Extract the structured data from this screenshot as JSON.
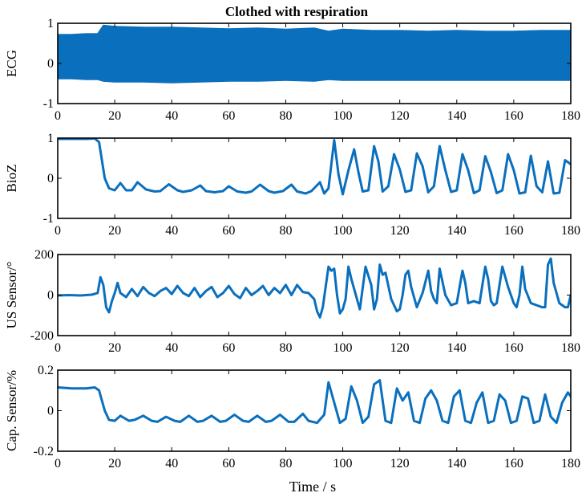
{
  "figure_title": "Clothed with respiration",
  "xlabel": "Time / s",
  "colors": {
    "series": "#0a6fbd",
    "axes": "#000000"
  },
  "chart_data": [
    {
      "type": "line",
      "ylabel": "ECG",
      "xlim": [
        0,
        180
      ],
      "ylim": [
        -1,
        1
      ],
      "xticks": [
        0,
        20,
        40,
        60,
        80,
        100,
        120,
        140,
        160,
        180
      ],
      "yticks": [
        -1,
        0,
        1
      ],
      "grid": false,
      "series": [
        {
          "note_kind": "dense oscillation envelope",
          "x": [
            0,
            5,
            10,
            14,
            16,
            20,
            30,
            40,
            50,
            60,
            70,
            80,
            90,
            95,
            100,
            110,
            120,
            130,
            140,
            150,
            160,
            170,
            180
          ],
          "upper": [
            0.72,
            0.72,
            0.74,
            0.74,
            0.95,
            0.92,
            0.9,
            0.9,
            0.88,
            0.86,
            0.88,
            0.85,
            0.88,
            0.8,
            0.85,
            0.82,
            0.82,
            0.8,
            0.82,
            0.8,
            0.8,
            0.82,
            0.82
          ],
          "lower": [
            -0.38,
            -0.38,
            -0.4,
            -0.4,
            -0.44,
            -0.46,
            -0.46,
            -0.48,
            -0.46,
            -0.44,
            -0.44,
            -0.42,
            -0.44,
            -0.4,
            -0.42,
            -0.42,
            -0.42,
            -0.42,
            -0.42,
            -0.42,
            -0.42,
            -0.42,
            -0.42
          ]
        }
      ]
    },
    {
      "type": "line",
      "ylabel": "BioZ",
      "xlim": [
        0,
        180
      ],
      "ylim": [
        -1,
        1
      ],
      "xticks": [
        0,
        20,
        40,
        60,
        80,
        100,
        120,
        140,
        160,
        180
      ],
      "yticks": [
        -1,
        0,
        1
      ],
      "grid": false,
      "series": [
        {
          "x": [
            0,
            5,
            10,
            13,
            14.5,
            16.5,
            18,
            20,
            22,
            24,
            26,
            28,
            31,
            34,
            36,
            39,
            42,
            44,
            47,
            50,
            52,
            55,
            58,
            60,
            63,
            66,
            68,
            71,
            74,
            76,
            79,
            82,
            84,
            87,
            89,
            92,
            93.5,
            95,
            97,
            98.5,
            100,
            102,
            104,
            105.5,
            107,
            109,
            111,
            112.5,
            114,
            116,
            118,
            120,
            122,
            124,
            126,
            128,
            130,
            132,
            134,
            136,
            138,
            140,
            142,
            144,
            146,
            148,
            150,
            152,
            154,
            156,
            158,
            160,
            162,
            164,
            166,
            168,
            170,
            172,
            174,
            176,
            178,
            180
          ],
          "y": [
            0.98,
            0.98,
            0.98,
            0.99,
            0.9,
            0.0,
            -0.25,
            -0.3,
            -0.12,
            -0.3,
            -0.3,
            -0.1,
            -0.28,
            -0.33,
            -0.32,
            -0.15,
            -0.3,
            -0.34,
            -0.3,
            -0.18,
            -0.32,
            -0.35,
            -0.32,
            -0.2,
            -0.33,
            -0.36,
            -0.33,
            -0.16,
            -0.32,
            -0.36,
            -0.32,
            -0.16,
            -0.33,
            -0.38,
            -0.32,
            -0.1,
            -0.38,
            -0.25,
            0.95,
            0.1,
            -0.4,
            0.2,
            0.72,
            0.15,
            -0.33,
            -0.3,
            0.8,
            0.42,
            -0.33,
            -0.2,
            0.6,
            0.22,
            -0.34,
            -0.3,
            0.62,
            0.3,
            -0.35,
            -0.2,
            0.8,
            0.2,
            -0.34,
            -0.3,
            0.6,
            0.2,
            -0.37,
            -0.3,
            0.55,
            0.15,
            -0.37,
            -0.3,
            0.6,
            0.2,
            -0.38,
            -0.35,
            0.56,
            -0.2,
            -0.35,
            0.42,
            -0.38,
            -0.36,
            0.45,
            0.35
          ]
        }
      ]
    },
    {
      "type": "line",
      "ylabel": "US Sensor/°",
      "xlim": [
        0,
        180
      ],
      "ylim": [
        -200,
        200
      ],
      "xticks": [
        0,
        20,
        40,
        60,
        80,
        100,
        120,
        140,
        160,
        180
      ],
      "yticks": [
        -200,
        0,
        200
      ],
      "grid": false,
      "series": [
        {
          "x": [
            0,
            4,
            8,
            12,
            14,
            15,
            16,
            17,
            18,
            19,
            20,
            21,
            22,
            24,
            26,
            28,
            30,
            32,
            34,
            36,
            38,
            40,
            42,
            44,
            46,
            48,
            50,
            52,
            54,
            56,
            58,
            60,
            62,
            64,
            66,
            68,
            70,
            72,
            74,
            76,
            78,
            80,
            82,
            84,
            86,
            88,
            90,
            91,
            92,
            93,
            94,
            95,
            96,
            97,
            98,
            99,
            100,
            101,
            102,
            103,
            104,
            106,
            108,
            110,
            111,
            112,
            113,
            114,
            115,
            117,
            119,
            120,
            121,
            122,
            123,
            124,
            126,
            128,
            130,
            131,
            132,
            133,
            134,
            136,
            138,
            140,
            141,
            142,
            143,
            144,
            146,
            148,
            150,
            151,
            152,
            153,
            154,
            156,
            158,
            160,
            161,
            162,
            163,
            164,
            166,
            168,
            170,
            171,
            172,
            173,
            174,
            176,
            178,
            179,
            180
          ],
          "y": [
            -2,
            0,
            -2,
            2,
            10,
            88,
            50,
            -60,
            -85,
            -30,
            10,
            60,
            10,
            -10,
            30,
            -5,
            40,
            10,
            -5,
            20,
            35,
            5,
            45,
            10,
            -5,
            35,
            -10,
            20,
            40,
            -10,
            10,
            45,
            5,
            -15,
            35,
            0,
            20,
            45,
            0,
            35,
            10,
            50,
            0,
            50,
            15,
            10,
            -20,
            -80,
            -110,
            -60,
            40,
            140,
            120,
            130,
            0,
            -90,
            -70,
            -20,
            140,
            80,
            30,
            -70,
            140,
            50,
            -70,
            -20,
            150,
            100,
            110,
            -20,
            -80,
            -70,
            0,
            100,
            120,
            40,
            -60,
            10,
            120,
            20,
            -20,
            -40,
            130,
            0,
            -50,
            -40,
            40,
            120,
            60,
            -40,
            -30,
            -40,
            140,
            80,
            -30,
            -50,
            -40,
            140,
            40,
            -40,
            -60,
            0,
            140,
            30,
            -40,
            -50,
            -60,
            -60,
            150,
            180,
            60,
            -40,
            -60,
            -60,
            0
          ]
        }
      ]
    },
    {
      "type": "line",
      "ylabel": "Cap. Sensor/%",
      "xlim": [
        0,
        180
      ],
      "ylim": [
        -0.2,
        0.2
      ],
      "xticks": [
        0,
        20,
        40,
        60,
        80,
        100,
        120,
        140,
        160,
        180
      ],
      "yticks": [
        -0.2,
        0,
        0.2
      ],
      "grid": false,
      "series": [
        {
          "x": [
            0,
            5,
            10,
            13,
            14.5,
            16.5,
            18,
            20,
            22,
            25,
            27,
            30,
            33,
            35,
            38,
            41,
            43,
            46,
            49,
            51,
            54,
            57,
            59,
            62,
            65,
            67,
            70,
            73,
            75,
            78,
            81,
            83,
            86,
            88,
            91,
            93.5,
            95,
            97,
            99,
            101,
            103,
            105,
            107,
            109,
            111,
            113,
            115,
            117,
            119,
            121,
            123,
            125,
            127,
            129,
            131,
            133,
            135,
            137,
            139,
            141,
            143,
            145,
            147,
            149,
            151,
            153,
            155,
            157,
            159,
            161,
            163,
            165,
            167,
            169,
            171,
            173,
            175,
            177,
            179,
            180
          ],
          "y": [
            0.115,
            0.11,
            0.11,
            0.115,
            0.1,
            0.0,
            -0.045,
            -0.05,
            -0.025,
            -0.05,
            -0.045,
            -0.025,
            -0.05,
            -0.055,
            -0.03,
            -0.05,
            -0.055,
            -0.025,
            -0.055,
            -0.05,
            -0.025,
            -0.055,
            -0.05,
            -0.02,
            -0.05,
            -0.055,
            -0.025,
            -0.055,
            -0.05,
            -0.02,
            -0.055,
            -0.055,
            -0.015,
            -0.05,
            -0.06,
            -0.02,
            0.14,
            0.04,
            -0.06,
            -0.04,
            0.12,
            0.05,
            -0.06,
            -0.03,
            0.13,
            0.15,
            -0.05,
            -0.06,
            0.11,
            0.05,
            0.09,
            -0.05,
            -0.06,
            0.06,
            0.1,
            0.05,
            -0.05,
            -0.06,
            0.07,
            0.1,
            -0.05,
            -0.06,
            0.04,
            0.09,
            -0.06,
            -0.05,
            0.08,
            0.05,
            -0.06,
            -0.05,
            0.07,
            0.06,
            -0.06,
            -0.05,
            0.08,
            -0.03,
            -0.06,
            0.04,
            0.09,
            0.07
          ]
        }
      ]
    }
  ]
}
